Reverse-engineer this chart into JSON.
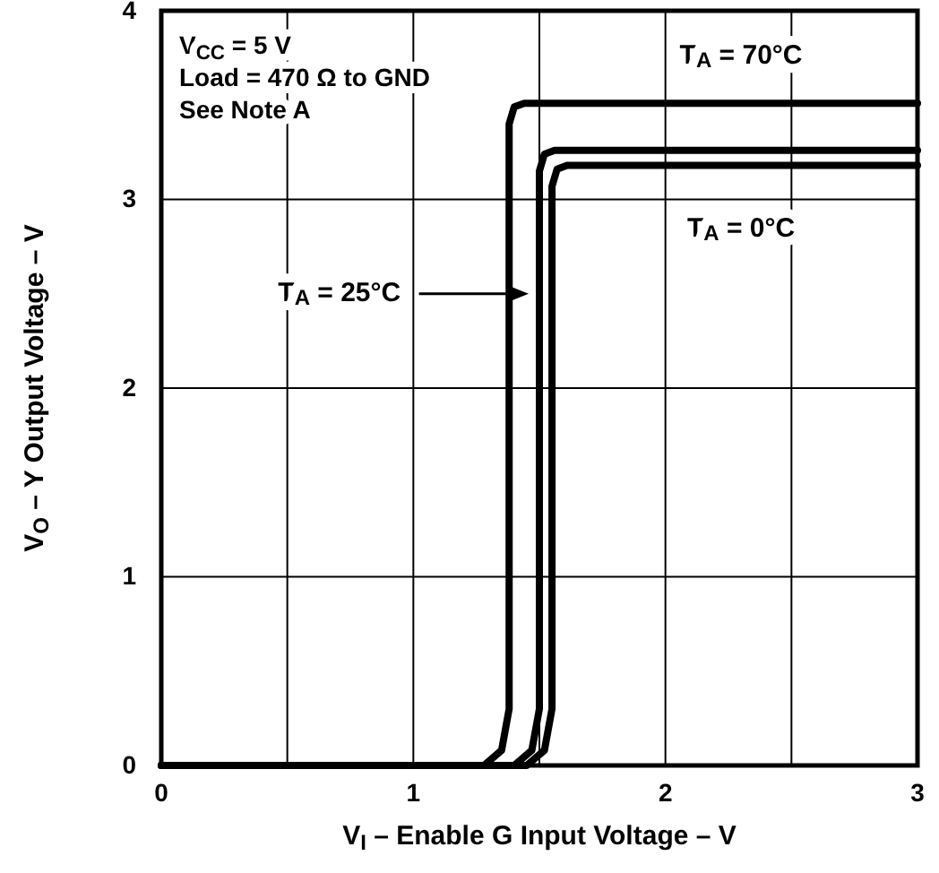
{
  "chart_data": {
    "type": "line",
    "xlabel": "V$_{I}$ – Enable G Input Voltage – V",
    "ylabel": "V$_{O}$ – Y Output Voltage – V",
    "xlim": [
      0,
      3
    ],
    "ylim": [
      0,
      4
    ],
    "xticks": [
      0,
      {
        "value": 0.5,
        "label": null
      },
      1,
      {
        "value": 1.5,
        "label": null
      },
      2,
      {
        "value": 2.5,
        "label": null
      },
      3
    ],
    "yticks": [
      0,
      1,
      2,
      3,
      4
    ],
    "grid": true,
    "marker": "none",
    "line_style": "solid",
    "series": [
      {
        "name": "T$_{A}$ = 70°C",
        "color": "#000000",
        "x": [
          0,
          1.28,
          1.35,
          1.38,
          1.38,
          1.4,
          1.44,
          3
        ],
        "values": [
          0,
          0,
          0.08,
          0.3,
          3.4,
          3.49,
          3.51,
          3.51
        ]
      },
      {
        "name": "T$_{A}$ = 25°C",
        "color": "#000000",
        "x": [
          0,
          1.4,
          1.47,
          1.5,
          1.5,
          1.52,
          1.56,
          3
        ],
        "values": [
          0,
          0,
          0.08,
          0.3,
          3.15,
          3.24,
          3.26,
          3.26
        ]
      },
      {
        "name": "T$_{A}$ = 0°C",
        "color": "#000000",
        "x": [
          0,
          1.45,
          1.52,
          1.55,
          1.55,
          1.57,
          1.61,
          3
        ],
        "values": [
          0,
          0,
          0.08,
          0.3,
          3.07,
          3.16,
          3.18,
          3.18
        ]
      }
    ],
    "annotations": [
      "V$_{CC}$ = 5 V",
      "Load = 470 Ω to GND",
      "See Note A"
    ]
  }
}
